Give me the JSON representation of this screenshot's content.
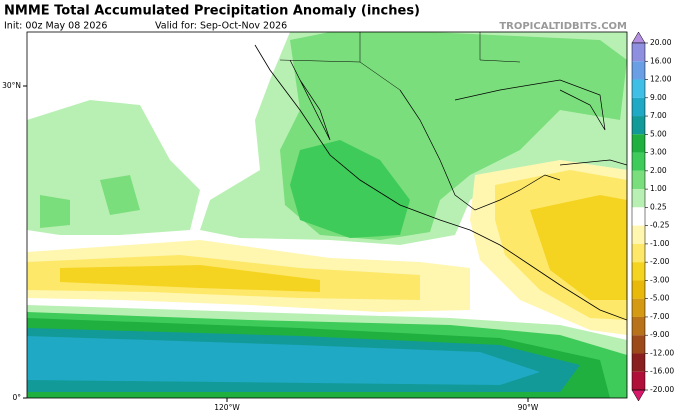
{
  "header": {
    "title": "NMME Total Accumulated Precipitation Anomaly (inches)",
    "init": "Init: 00z May 08 2026",
    "valid": "Valid for: Sep-Oct-Nov 2026",
    "site": "TROPICALTIDBITS.COM"
  },
  "map": {
    "lat_labels": [
      "30°N",
      "0°"
    ],
    "lon_labels": [
      "120°W",
      "90°W"
    ]
  },
  "colorbar": {
    "ticks": [
      {
        "value": 20,
        "label": "20.00"
      },
      {
        "value": 16,
        "label": "16.00"
      },
      {
        "value": 12,
        "label": "12.00"
      },
      {
        "value": 9,
        "label": "9.00"
      },
      {
        "value": 7,
        "label": "7.00"
      },
      {
        "value": 5,
        "label": "5.00"
      },
      {
        "value": 3,
        "label": "3.00"
      },
      {
        "value": 2,
        "label": "2.00"
      },
      {
        "value": 1,
        "label": "1.00"
      },
      {
        "value": 0.25,
        "label": "0.25"
      },
      {
        "value": -0.25,
        "label": "-0.25"
      },
      {
        "value": -1,
        "label": "-1.00"
      },
      {
        "value": -2,
        "label": "-2.00"
      },
      {
        "value": -3,
        "label": "-3.00"
      },
      {
        "value": -5,
        "label": "-5.00"
      },
      {
        "value": -7,
        "label": "-7.00"
      },
      {
        "value": -9,
        "label": "-9.00"
      },
      {
        "value": -12,
        "label": "-12.00"
      },
      {
        "value": -16,
        "label": "-16.00"
      },
      {
        "value": -20,
        "label": "-20.00"
      }
    ],
    "colors": [
      "#b48ee0",
      "#8f8fe0",
      "#6a9fe6",
      "#3fbfe6",
      "#1fa9c4",
      "#129a98",
      "#1fb040",
      "#3ecb5a",
      "#7ade7c",
      "#b8f0b3",
      "#ffffff",
      "#fff6b0",
      "#fde86a",
      "#f5d321",
      "#e8b80a",
      "#d49a13",
      "#b8731a",
      "#9c4a1a",
      "#8a1f1f",
      "#b00f3a",
      "#d8186a"
    ]
  }
}
